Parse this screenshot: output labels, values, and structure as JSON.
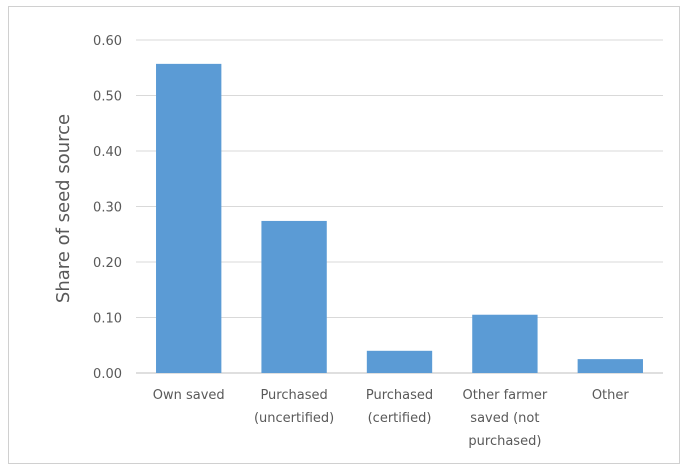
{
  "chart_data": {
    "type": "bar",
    "title": "",
    "xlabel": "",
    "ylabel": "Share of seed source",
    "ylim": [
      0,
      0.6
    ],
    "yticks": [
      "0.00",
      "0.10",
      "0.20",
      "0.30",
      "0.40",
      "0.50",
      "0.60"
    ],
    "grid": true,
    "legend": "none",
    "bar_color": "#5b9bd5",
    "categories": [
      [
        "Own saved"
      ],
      [
        "Purchased",
        "(uncertified)"
      ],
      [
        "Purchased",
        "(certified)"
      ],
      [
        "Other farmer",
        "saved (not",
        "purchased)"
      ],
      [
        "Other"
      ]
    ],
    "values": [
      0.557,
      0.274,
      0.04,
      0.105,
      0.025
    ]
  }
}
